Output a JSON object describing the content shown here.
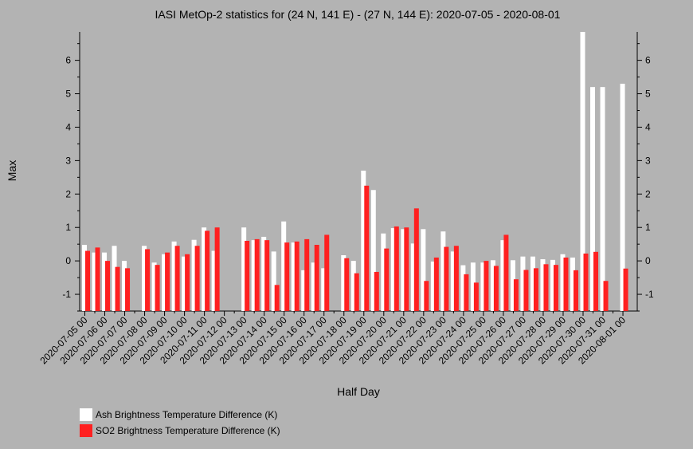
{
  "chart_data": {
    "type": "bar",
    "title": "IASI MetOp-2 statistics for (24 N, 141 E) - (27 N, 144 E): 2020-07-05 - 2020-08-01",
    "xlabel": "Half Day",
    "ylabel": "Max",
    "ylim": [
      -1.5,
      6.85
    ],
    "yticks": [
      -1,
      0,
      1,
      2,
      3,
      4,
      5,
      6
    ],
    "xtick_labels": [
      "2020-07-05 00",
      "2020-07-06 00",
      "2020-07-07 00",
      "2020-07-08 00",
      "2020-07-09 00",
      "2020-07-10 00",
      "2020-07-11 00",
      "2020-07-12 00",
      "2020-07-13 00",
      "2020-07-14 00",
      "2020-07-15 00",
      "2020-07-16 00",
      "2020-07-17 00",
      "2020-07-18 00",
      "2020-07-19 00",
      "2020-07-20 00",
      "2020-07-21 00",
      "2020-07-22 00",
      "2020-07-23 00",
      "2020-07-24 00",
      "2020-07-25 00",
      "2020-07-26 00",
      "2020-07-27 00",
      "2020-07-28 00",
      "2020-07-29 00",
      "2020-07-30 00",
      "2020-07-31 00",
      "2020-08-01 00"
    ],
    "categories": [
      "2020-07-05 00",
      "2020-07-05 12",
      "2020-07-06 00",
      "2020-07-06 12",
      "2020-07-07 00",
      "2020-07-07 12",
      "2020-07-08 00",
      "2020-07-08 12",
      "2020-07-09 00",
      "2020-07-09 12",
      "2020-07-10 00",
      "2020-07-10 12",
      "2020-07-11 00",
      "2020-07-11 12",
      "2020-07-12 00",
      "2020-07-12 12",
      "2020-07-13 00",
      "2020-07-13 12",
      "2020-07-14 00",
      "2020-07-14 12",
      "2020-07-15 00",
      "2020-07-15 12",
      "2020-07-16 00",
      "2020-07-16 12",
      "2020-07-17 00",
      "2020-07-17 12",
      "2020-07-18 00",
      "2020-07-18 12",
      "2020-07-19 00",
      "2020-07-19 12",
      "2020-07-20 00",
      "2020-07-20 12",
      "2020-07-21 00",
      "2020-07-21 12",
      "2020-07-22 00",
      "2020-07-22 12",
      "2020-07-23 00",
      "2020-07-23 12",
      "2020-07-24 00",
      "2020-07-24 12",
      "2020-07-25 00",
      "2020-07-25 12",
      "2020-07-26 00",
      "2020-07-26 12",
      "2020-07-27 00",
      "2020-07-27 12",
      "2020-07-28 00",
      "2020-07-28 12",
      "2020-07-29 00",
      "2020-07-29 12",
      "2020-07-30 00",
      "2020-07-30 12",
      "2020-07-31 00",
      "2020-07-31 12",
      "2020-08-01 00"
    ],
    "series": [
      {
        "name": "Ash Brightness Temperature Difference (K)",
        "color": "#ffffff",
        "values": [
          0.48,
          0.25,
          0.25,
          0.45,
          0.0,
          null,
          0.45,
          -0.05,
          0.2,
          0.58,
          0.13,
          0.63,
          1.0,
          0.3,
          null,
          null,
          1.0,
          0.62,
          0.72,
          0.28,
          1.18,
          0.55,
          -0.28,
          -0.05,
          -0.22,
          null,
          0.17,
          0.0,
          2.7,
          2.12,
          0.82,
          0.98,
          0.95,
          0.52,
          0.95,
          -0.02,
          0.88,
          0.28,
          -0.13,
          -0.05,
          -0.05,
          0.02,
          0.62,
          0.02,
          0.13,
          0.13,
          0.05,
          0.03,
          0.2,
          0.1,
          6.85,
          5.2,
          5.2,
          null,
          5.3
        ]
      },
      {
        "name": "SO2 Brightness Temperature Difference (K)",
        "color": "#ff2020",
        "values": [
          0.3,
          0.4,
          0.0,
          -0.18,
          -0.22,
          null,
          0.35,
          -0.12,
          0.25,
          0.45,
          0.2,
          0.45,
          0.9,
          1.0,
          null,
          null,
          0.6,
          0.65,
          0.62,
          -0.72,
          0.55,
          0.58,
          0.65,
          0.48,
          0.78,
          null,
          0.08,
          -0.37,
          2.25,
          -0.33,
          0.37,
          1.03,
          1.0,
          1.57,
          -0.6,
          0.1,
          0.42,
          0.45,
          -0.4,
          -0.65,
          0.0,
          -0.15,
          0.78,
          -0.55,
          -0.27,
          -0.22,
          -0.1,
          -0.12,
          0.1,
          -0.28,
          0.22,
          0.27,
          -0.6,
          null,
          -0.23
        ]
      }
    ],
    "legend_position": "bottom-left"
  }
}
